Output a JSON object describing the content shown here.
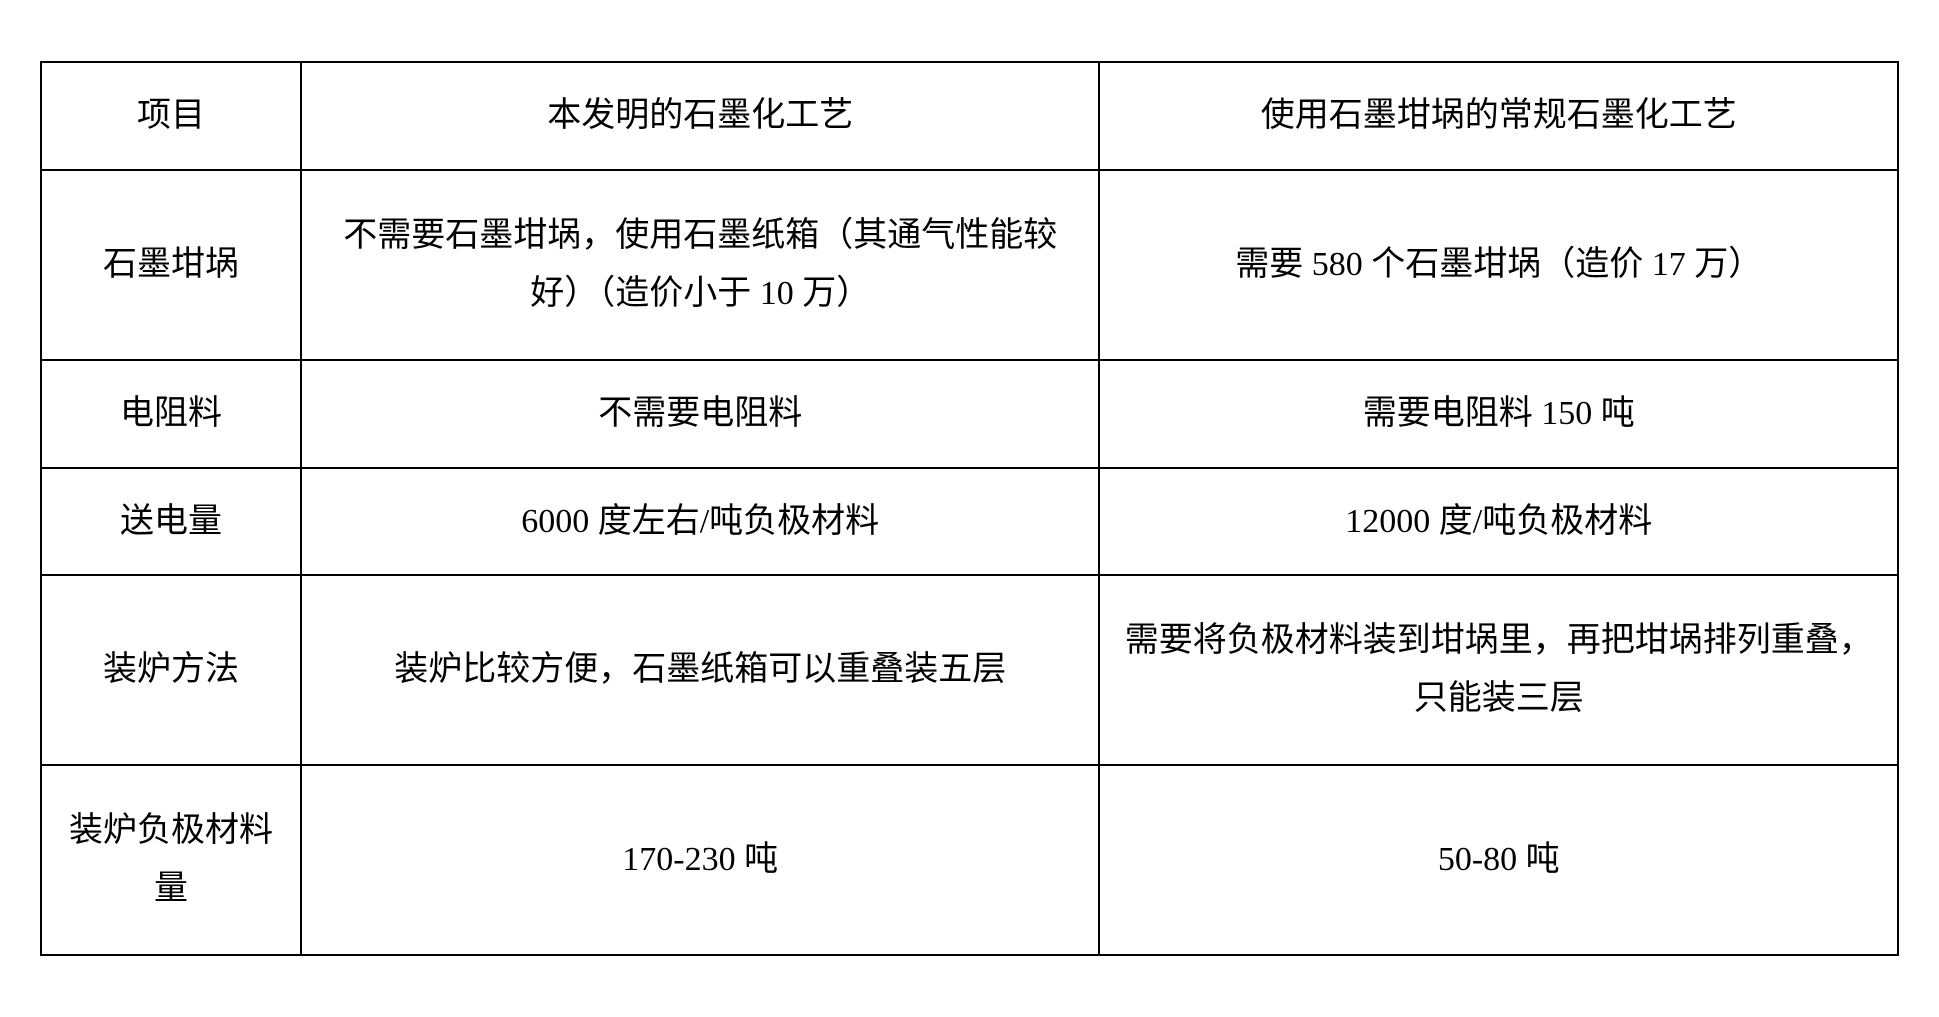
{
  "table": {
    "columns": [
      {
        "label": "项目",
        "width": "14%"
      },
      {
        "label": "本发明的石墨化工艺",
        "width": "43%"
      },
      {
        "label": "使用石墨坩埚的常规石墨化工艺",
        "width": "43%"
      }
    ],
    "rows": [
      {
        "label": "石墨坩埚",
        "invention": "不需要石墨坩埚，使用石墨纸箱（其通气性能较好）（造价小于 10 万）",
        "conventional": "需要 580 个石墨坩埚（造价 17 万）"
      },
      {
        "label": "电阻料",
        "invention": "不需要电阻料",
        "conventional": "需要电阻料 150 吨"
      },
      {
        "label": "送电量",
        "invention": "6000 度左右/吨负极材料",
        "conventional": "12000 度/吨负极材料"
      },
      {
        "label": "装炉方法",
        "invention": "装炉比较方便，石墨纸箱可以重叠装五层",
        "conventional": "需要将负极材料装到坩埚里，再把坩埚排列重叠，只能装三层"
      },
      {
        "label": "装炉负极材料量",
        "invention": "170-230 吨",
        "conventional": "50-80 吨"
      }
    ],
    "styling": {
      "border_color": "#000000",
      "border_width": 2,
      "background_color": "#ffffff",
      "text_color": "#000000",
      "font_family": "KaiTi",
      "font_size": 34,
      "line_height": 1.7,
      "cell_padding_v": 24,
      "cell_padding_h": 20,
      "text_align": "center"
    }
  }
}
